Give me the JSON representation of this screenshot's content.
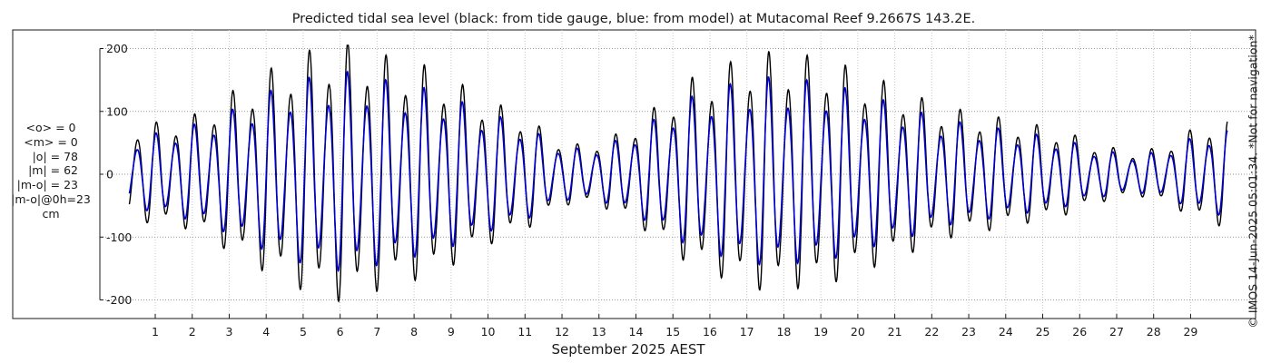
{
  "chart_data": {
    "type": "line",
    "title": "Predicted tidal sea level (black: from tide gauge, blue: from model) at Mutacomal Reef 9.2667S 143.2E.",
    "xlabel": "September 2025 AEST",
    "ylabel": "",
    "ylim": [
      -220,
      210
    ],
    "xlim": [
      0.3,
      30
    ],
    "y_ticks": [
      200,
      100,
      0,
      -100,
      -200
    ],
    "x_ticks": [
      1,
      2,
      3,
      4,
      5,
      6,
      7,
      8,
      9,
      10,
      11,
      12,
      13,
      14,
      15,
      16,
      17,
      18,
      19,
      20,
      21,
      22,
      23,
      24,
      25,
      26,
      27,
      28,
      29
    ],
    "grid": true,
    "series": [
      {
        "name": "from tide gauge",
        "color": "#000000",
        "day_amplitudes": [
          [
            0.3,
            65
          ],
          [
            1.0,
            70
          ],
          [
            1.7,
            75
          ],
          [
            2.3,
            85
          ],
          [
            3.0,
            110
          ],
          [
            3.6,
            125
          ],
          [
            4.0,
            140
          ],
          [
            4.5,
            150
          ],
          [
            5.0,
            165
          ],
          [
            5.5,
            170
          ],
          [
            6.0,
            180
          ],
          [
            6.5,
            175
          ],
          [
            7.0,
            165
          ],
          [
            7.5,
            155
          ],
          [
            8.0,
            150
          ],
          [
            8.5,
            145
          ],
          [
            9.0,
            130
          ],
          [
            9.5,
            115
          ],
          [
            10.0,
            100
          ],
          [
            10.5,
            90
          ],
          [
            11.0,
            80
          ],
          [
            11.5,
            60
          ],
          [
            12.0,
            45
          ],
          [
            12.5,
            40
          ],
          [
            13.0,
            45
          ],
          [
            13.5,
            55
          ],
          [
            14.0,
            70
          ],
          [
            14.5,
            90
          ],
          [
            15.0,
            110
          ],
          [
            15.5,
            130
          ],
          [
            16.0,
            140
          ],
          [
            16.5,
            150
          ],
          [
            17.0,
            160
          ],
          [
            17.5,
            165
          ],
          [
            18.0,
            165
          ],
          [
            18.5,
            160
          ],
          [
            19.0,
            160
          ],
          [
            19.5,
            150
          ],
          [
            20.0,
            140
          ],
          [
            20.5,
            130
          ],
          [
            21.0,
            120
          ],
          [
            21.5,
            110
          ],
          [
            22.0,
            95
          ],
          [
            22.5,
            90
          ],
          [
            23.0,
            85
          ],
          [
            23.5,
            80
          ],
          [
            24.0,
            75
          ],
          [
            24.5,
            70
          ],
          [
            25.0,
            65
          ],
          [
            25.5,
            60
          ],
          [
            26.0,
            50
          ],
          [
            26.5,
            40
          ],
          [
            27.0,
            35
          ],
          [
            27.5,
            30
          ],
          [
            28.0,
            35
          ],
          [
            28.5,
            45
          ],
          [
            29.0,
            60
          ],
          [
            29.5,
            70
          ],
          [
            30.0,
            75
          ]
        ]
      },
      {
        "name": "from model",
        "color": "#0000cc",
        "day_amplitudes": [
          [
            0.3,
            45
          ],
          [
            1.0,
            55
          ],
          [
            1.7,
            62
          ],
          [
            2.3,
            70
          ],
          [
            3.0,
            85
          ],
          [
            3.6,
            98
          ],
          [
            4.0,
            110
          ],
          [
            4.5,
            118
          ],
          [
            5.0,
            128
          ],
          [
            5.5,
            132
          ],
          [
            6.0,
            138
          ],
          [
            6.5,
            136
          ],
          [
            7.0,
            130
          ],
          [
            7.5,
            122
          ],
          [
            8.0,
            118
          ],
          [
            8.5,
            114
          ],
          [
            9.0,
            104
          ],
          [
            9.5,
            92
          ],
          [
            10.0,
            82
          ],
          [
            10.5,
            74
          ],
          [
            11.0,
            66
          ],
          [
            11.5,
            50
          ],
          [
            12.0,
            38
          ],
          [
            12.5,
            34
          ],
          [
            13.0,
            38
          ],
          [
            13.5,
            46
          ],
          [
            14.0,
            58
          ],
          [
            14.5,
            74
          ],
          [
            15.0,
            90
          ],
          [
            15.5,
            104
          ],
          [
            16.0,
            112
          ],
          [
            16.5,
            120
          ],
          [
            17.0,
            126
          ],
          [
            17.5,
            130
          ],
          [
            18.0,
            130
          ],
          [
            18.5,
            126
          ],
          [
            19.0,
            126
          ],
          [
            19.5,
            118
          ],
          [
            20.0,
            110
          ],
          [
            20.5,
            102
          ],
          [
            21.0,
            95
          ],
          [
            21.5,
            88
          ],
          [
            22.0,
            76
          ],
          [
            22.5,
            72
          ],
          [
            23.0,
            68
          ],
          [
            23.5,
            64
          ],
          [
            24.0,
            60
          ],
          [
            24.5,
            56
          ],
          [
            25.0,
            52
          ],
          [
            25.5,
            48
          ],
          [
            26.0,
            40
          ],
          [
            26.5,
            33
          ],
          [
            27.0,
            29
          ],
          [
            27.5,
            26
          ],
          [
            28.0,
            29
          ],
          [
            28.5,
            37
          ],
          [
            29.0,
            48
          ],
          [
            29.5,
            56
          ],
          [
            30.0,
            60
          ]
        ]
      }
    ]
  },
  "stats": {
    "mean_o": "<o> = 0",
    "mean_m": "<m> = 0",
    "abs_o": "|o| = 78",
    "abs_m": "|m| = 62",
    "abs_mo": "|m-o| = 23",
    "abs_mo_0h": "|m-o|@0h=23",
    "unit": "cm"
  },
  "credit": "© IMOS 14-Jun-2025 05:01:34. *Not for navigation*"
}
